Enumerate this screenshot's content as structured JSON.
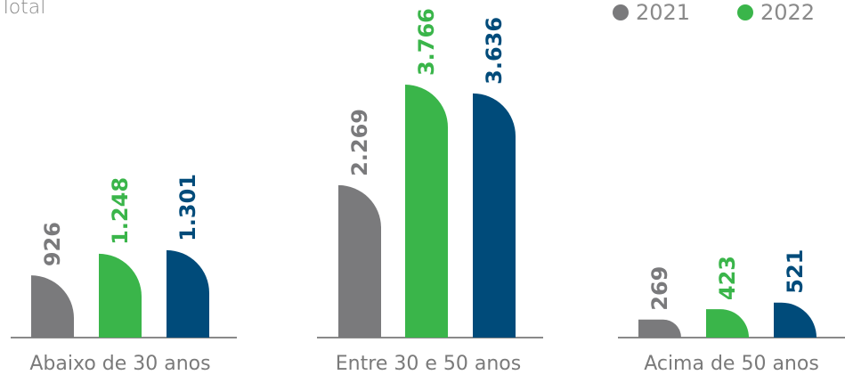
{
  "chart_data": {
    "type": "bar",
    "title": "Total",
    "categories": [
      "Abaixo de 30 anos",
      "Entre 30 e 50 anos",
      "Acima de 50 anos"
    ],
    "series": [
      {
        "name": "2021",
        "values": [
          926,
          2269,
          269
        ],
        "labels": [
          "926",
          "2.269",
          "269"
        ],
        "color": "#7a7a7c"
      },
      {
        "name": "2022",
        "values": [
          1248,
          3766,
          423
        ],
        "labels": [
          "1.248",
          "3.766",
          "423"
        ],
        "color": "#3ab54a"
      },
      {
        "name": "",
        "values": [
          1301,
          3636,
          521
        ],
        "labels": [
          "1.301",
          "3.636",
          "521"
        ],
        "color": "#004b7a"
      }
    ],
    "legend": [
      "2021",
      "2022"
    ],
    "legend_position": "top-right",
    "grid": false
  }
}
